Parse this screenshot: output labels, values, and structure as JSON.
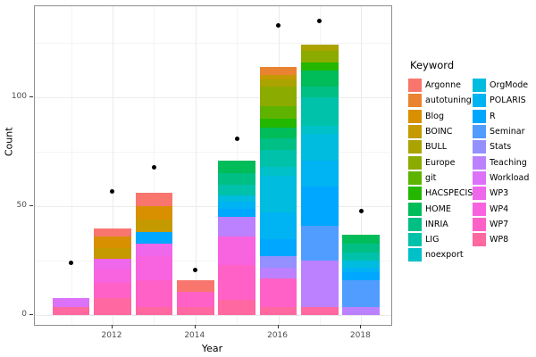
{
  "chart_data": {
    "type": "bar",
    "stacked": true,
    "xlabel": "Year",
    "ylabel": "Count",
    "legend_title": "Keyword",
    "legend_position": "right",
    "legend_columns": 12,
    "grid": {
      "major_color": "#ebebeb",
      "minor_color": "#f4f4f4",
      "on": true
    },
    "x_ticks": [
      2012,
      2014,
      2016,
      2018
    ],
    "x_minor": [
      2011,
      2013,
      2015,
      2017
    ],
    "y_ticks": [
      0,
      50,
      100
    ],
    "y_minor": [
      25,
      75,
      125
    ],
    "xlim": [
      2010.125,
      2018.725
    ],
    "ylim": [
      -4.3,
      141.6
    ],
    "bar_width_years": 0.9,
    "keywords": [
      {
        "name": "Argonne",
        "color": "#F8766D"
      },
      {
        "name": "autotuning",
        "color": "#EA8331"
      },
      {
        "name": "Blog",
        "color": "#D89000"
      },
      {
        "name": "BOINC",
        "color": "#C49A00"
      },
      {
        "name": "BULL",
        "color": "#ABA300"
      },
      {
        "name": "Europe",
        "color": "#8CAB00"
      },
      {
        "name": "git",
        "color": "#5EB300"
      },
      {
        "name": "HACSPECIS",
        "color": "#24B700"
      },
      {
        "name": "HOME",
        "color": "#00BC59"
      },
      {
        "name": "INRIA",
        "color": "#00BF85"
      },
      {
        "name": "LIG",
        "color": "#00C1AA"
      },
      {
        "name": "noexport",
        "color": "#00C0C8"
      },
      {
        "name": "OrgMode",
        "color": "#00BCDE"
      },
      {
        "name": "POLARIS",
        "color": "#00B3F2"
      },
      {
        "name": "R",
        "color": "#00A7FF"
      },
      {
        "name": "Seminar",
        "color": "#519CFF"
      },
      {
        "name": "Stats",
        "color": "#9590FF"
      },
      {
        "name": "Teaching",
        "color": "#BC81FF"
      },
      {
        "name": "Workload",
        "color": "#DC71FA"
      },
      {
        "name": "WP3",
        "color": "#EF67EB"
      },
      {
        "name": "WP4",
        "color": "#F863DF"
      },
      {
        "name": "WP7",
        "color": "#FF61C7"
      },
      {
        "name": "WP8",
        "color": "#FF68A1"
      }
    ],
    "bars": [
      {
        "year": 2011,
        "total": 8,
        "segments": [
          {
            "keyword": "Workload",
            "value": 4
          },
          {
            "keyword": "WP8",
            "value": 4
          }
        ]
      },
      {
        "year": 2012,
        "total": 40,
        "segments": [
          {
            "keyword": "Argonne",
            "value": 4
          },
          {
            "keyword": "Blog",
            "value": 5
          },
          {
            "keyword": "BOINC",
            "value": 5
          },
          {
            "keyword": "WP3",
            "value": 5
          },
          {
            "keyword": "WP4",
            "value": 6
          },
          {
            "keyword": "WP7",
            "value": 7
          },
          {
            "keyword": "WP8",
            "value": 8
          }
        ]
      },
      {
        "year": 2013,
        "total": 56,
        "segments": [
          {
            "keyword": "Argonne",
            "value": 6
          },
          {
            "keyword": "Blog",
            "value": 6
          },
          {
            "keyword": "BOINC",
            "value": 6
          },
          {
            "keyword": "R",
            "value": 5
          },
          {
            "keyword": "WP3",
            "value": 6
          },
          {
            "keyword": "WP4",
            "value": 11
          },
          {
            "keyword": "WP7",
            "value": 12
          },
          {
            "keyword": "WP8",
            "value": 4
          }
        ]
      },
      {
        "year": 2014,
        "total": 16,
        "segments": [
          {
            "keyword": "Argonne",
            "value": 5
          },
          {
            "keyword": "WP7",
            "value": 7
          },
          {
            "keyword": "WP8",
            "value": 4
          }
        ]
      },
      {
        "year": 2015,
        "total": 71,
        "segments": [
          {
            "keyword": "HOME",
            "value": 6
          },
          {
            "keyword": "INRIA",
            "value": 5
          },
          {
            "keyword": "LIG",
            "value": 5
          },
          {
            "keyword": "OrgMode",
            "value": 3
          },
          {
            "keyword": "POLARIS",
            "value": 3
          },
          {
            "keyword": "R",
            "value": 4
          },
          {
            "keyword": "Teaching",
            "value": 9
          },
          {
            "keyword": "WP4",
            "value": 13
          },
          {
            "keyword": "WP7",
            "value": 16
          },
          {
            "keyword": "WP8",
            "value": 7
          }
        ]
      },
      {
        "year": 2016,
        "total": 114,
        "segments": [
          {
            "keyword": "autotuning",
            "value": 4
          },
          {
            "keyword": "BOINC",
            "value": 2
          },
          {
            "keyword": "BULL",
            "value": 3
          },
          {
            "keyword": "Europe",
            "value": 9
          },
          {
            "keyword": "git",
            "value": 6
          },
          {
            "keyword": "HACSPECIS",
            "value": 4
          },
          {
            "keyword": "HOME",
            "value": 5
          },
          {
            "keyword": "INRIA",
            "value": 5
          },
          {
            "keyword": "LIG",
            "value": 8
          },
          {
            "keyword": "noexport",
            "value": 4
          },
          {
            "keyword": "OrgMode",
            "value": 17
          },
          {
            "keyword": "POLARIS",
            "value": 12
          },
          {
            "keyword": "R",
            "value": 8
          },
          {
            "keyword": "Stats",
            "value": 5
          },
          {
            "keyword": "Teaching",
            "value": 5
          },
          {
            "keyword": "WP7",
            "value": 13
          },
          {
            "keyword": "WP8",
            "value": 4
          }
        ]
      },
      {
        "year": 2017,
        "total": 124,
        "segments": [
          {
            "keyword": "BULL",
            "value": 3
          },
          {
            "keyword": "Europe",
            "value": 5
          },
          {
            "keyword": "HACSPECIS",
            "value": 4
          },
          {
            "keyword": "HOME",
            "value": 7
          },
          {
            "keyword": "INRIA",
            "value": 5
          },
          {
            "keyword": "LIG",
            "value": 13
          },
          {
            "keyword": "noexport",
            "value": 4
          },
          {
            "keyword": "OrgMode",
            "value": 12
          },
          {
            "keyword": "POLARIS",
            "value": 12
          },
          {
            "keyword": "R",
            "value": 18
          },
          {
            "keyword": "Seminar",
            "value": 16
          },
          {
            "keyword": "Teaching",
            "value": 21
          },
          {
            "keyword": "WP8",
            "value": 4
          }
        ]
      },
      {
        "year": 2018,
        "total": 37,
        "segments": [
          {
            "keyword": "HOME",
            "value": 4
          },
          {
            "keyword": "INRIA",
            "value": 4
          },
          {
            "keyword": "LIG",
            "value": 4
          },
          {
            "keyword": "OrgMode",
            "value": 3
          },
          {
            "keyword": "POLARIS",
            "value": 2
          },
          {
            "keyword": "R",
            "value": 4
          },
          {
            "keyword": "Seminar",
            "value": 12
          },
          {
            "keyword": "Teaching",
            "value": 4
          }
        ]
      }
    ],
    "points": [
      {
        "year": 2011,
        "value": 24
      },
      {
        "year": 2012,
        "value": 57
      },
      {
        "year": 2013,
        "value": 68
      },
      {
        "year": 2014,
        "value": 21
      },
      {
        "year": 2015,
        "value": 81
      },
      {
        "year": 2016,
        "value": 133
      },
      {
        "year": 2017,
        "value": 135
      },
      {
        "year": 2018,
        "value": 48
      }
    ]
  }
}
